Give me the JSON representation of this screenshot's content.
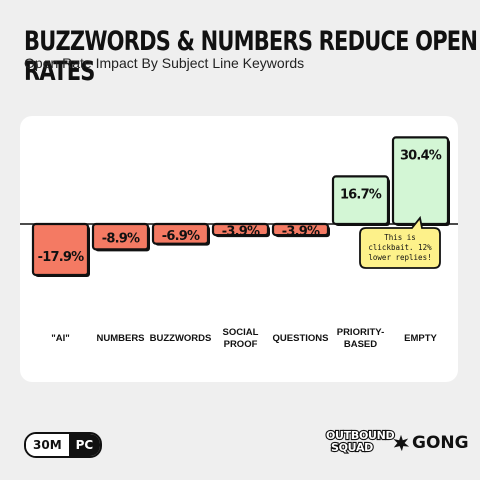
{
  "header": {
    "title": "BUZZWORDS & NUMBERS REDUCE OPEN RATES",
    "subtitle": "Open Rate Impact By Subject Line Keywords"
  },
  "chart_data": {
    "type": "bar",
    "categories": [
      "\"AI\"",
      "NUMBERS",
      "BUZZWORDS",
      "SOCIAL PROOF",
      "QUESTIONS",
      "PRIORITY-BASED",
      "EMPTY"
    ],
    "category_lines": [
      [
        "\"AI\""
      ],
      [
        "NUMBERS"
      ],
      [
        "BUZZWORDS"
      ],
      [
        "SOCIAL",
        "PROOF"
      ],
      [
        "QUESTIONS"
      ],
      [
        "PRIORITY-",
        "BASED"
      ],
      [
        "EMPTY"
      ]
    ],
    "values": [
      -17.9,
      -8.9,
      -6.9,
      -3.9,
      -3.9,
      16.7,
      30.4
    ],
    "value_labels": [
      "-17.9%",
      "-8.9%",
      "-6.9%",
      "-3.9%",
      "-3.9%",
      "16.7%",
      "30.4%"
    ],
    "colors": {
      "negative": "#f47a63",
      "positive": "#d3f6d5",
      "outline": "#111111",
      "callout": "#fdf18a"
    },
    "zero_line": true,
    "grid": false,
    "annotation": {
      "text_lines": [
        "This is",
        "clickbait. 12%",
        "lower replies!"
      ],
      "category": "EMPTY"
    }
  },
  "footer": {
    "pill_left": "30M",
    "pill_right": "PC",
    "logo_squad_lines": [
      "OUTBOUND",
      "SQUAD"
    ],
    "logo_gong": "GONG"
  }
}
